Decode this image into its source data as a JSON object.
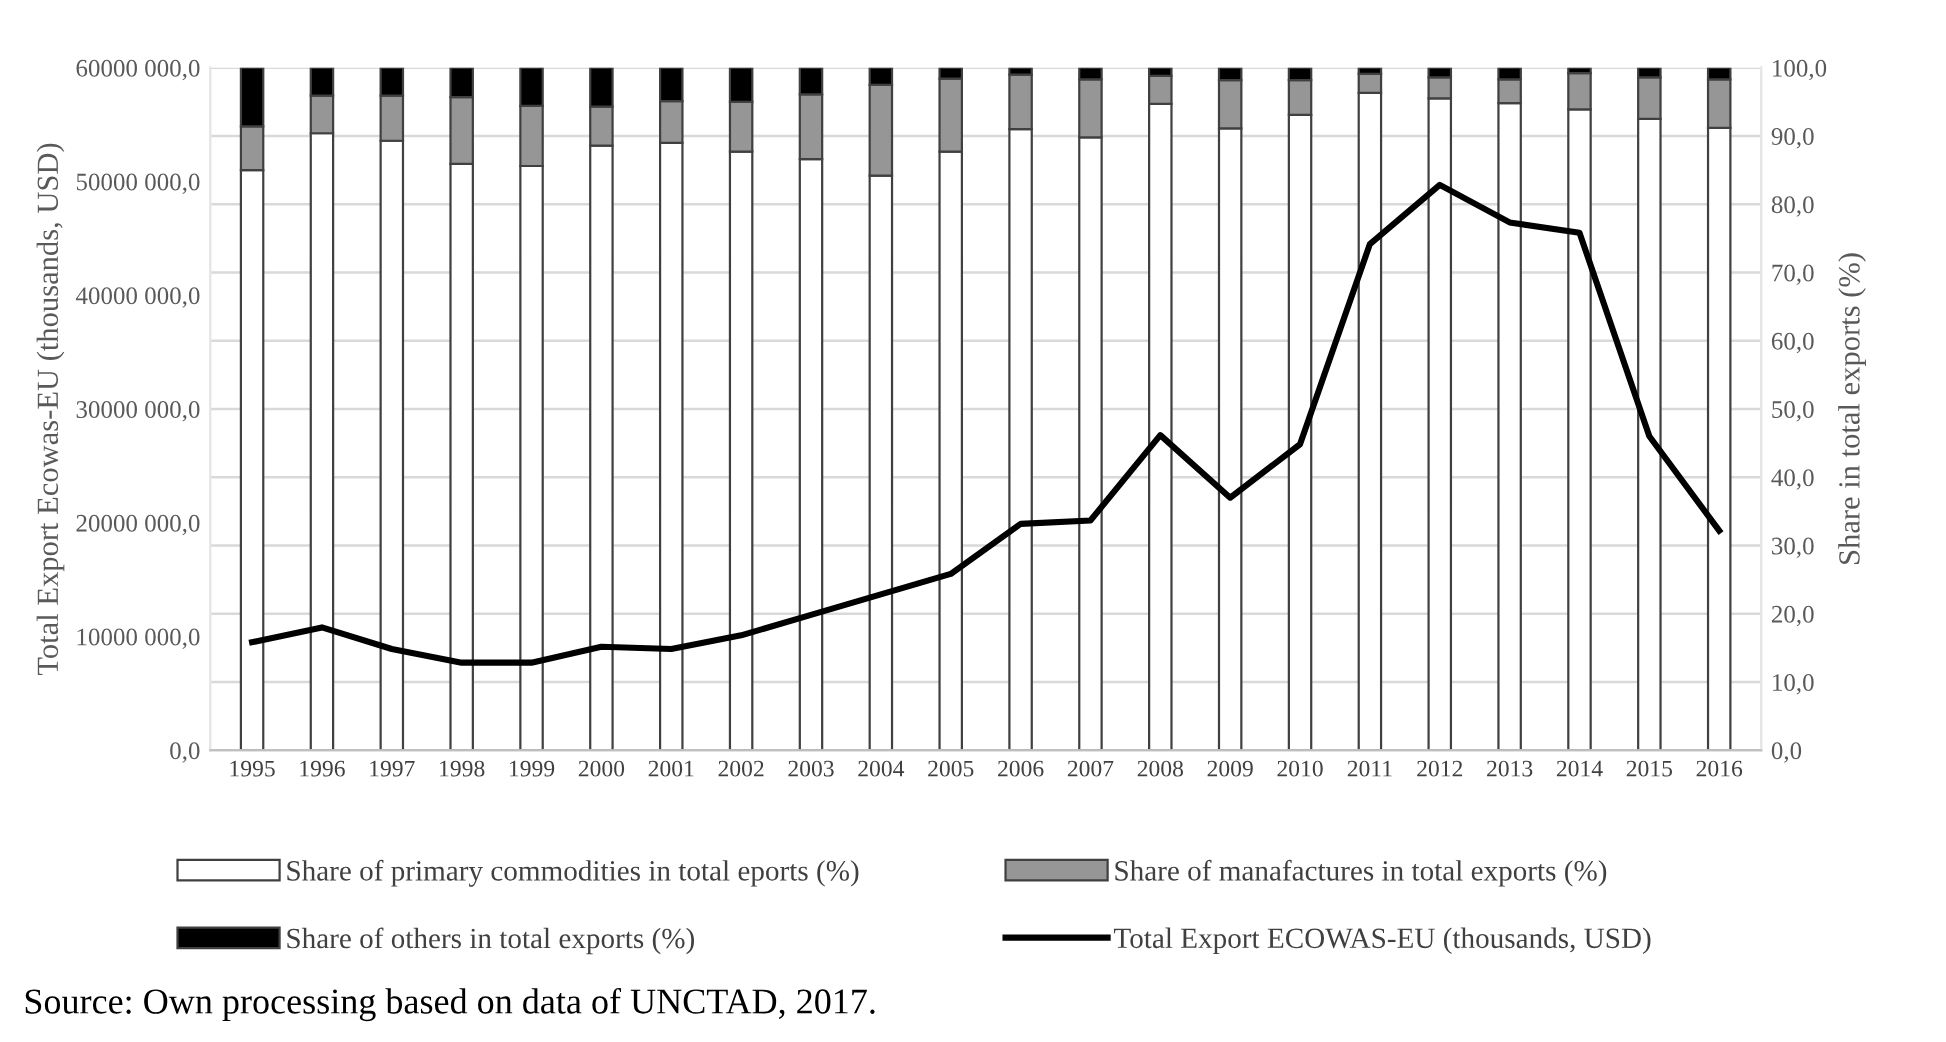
{
  "chart_data": {
    "type": "bar",
    "stacked": true,
    "categories": [
      "1995",
      "1996",
      "1997",
      "1998",
      "1999",
      "2000",
      "2001",
      "2002",
      "2003",
      "2004",
      "2005",
      "2006",
      "2007",
      "2008",
      "2009",
      "2010",
      "2011",
      "2012",
      "2013",
      "2014",
      "2015",
      "2016"
    ],
    "series": [
      {
        "name": "Share of primary commodities in total eports (%)",
        "axis": "y2",
        "color": "#ffffff",
        "values": [
          85.0,
          90.4,
          89.3,
          85.9,
          85.6,
          88.6,
          89.0,
          87.7,
          86.6,
          84.2,
          87.7,
          91.0,
          89.8,
          94.7,
          91.1,
          93.1,
          96.3,
          95.5,
          94.8,
          93.9,
          92.5,
          91.2
        ]
      },
      {
        "name": "Share of manafactures in total exports (%)",
        "axis": "y2",
        "color": "#969696",
        "values": [
          6.4,
          5.5,
          6.6,
          9.8,
          8.8,
          5.7,
          6.1,
          7.3,
          9.5,
          13.3,
          10.7,
          8.0,
          8.5,
          4.1,
          7.1,
          5.1,
          2.8,
          3.1,
          3.5,
          5.3,
          6.1,
          7.1
        ]
      },
      {
        "name": "Share of others in total exports (%)",
        "axis": "y2",
        "color": "#000000",
        "values": [
          8.6,
          4.1,
          4.1,
          4.3,
          5.6,
          5.7,
          4.9,
          5.0,
          3.9,
          2.5,
          1.6,
          1.0,
          1.7,
          1.2,
          1.8,
          1.8,
          0.9,
          1.4,
          1.7,
          0.8,
          1.4,
          1.7
        ]
      },
      {
        "name": "Total Export ECOWAS-EU (thousands, USD)",
        "type": "line",
        "color": "#000000",
        "values": [
          9500000,
          10800000,
          8900000,
          7700000,
          7700000,
          9100000,
          8900000,
          10100000,
          11900000,
          13700000,
          15500000,
          19900000,
          20200000,
          27700000,
          22200000,
          26900000,
          44500000,
          49700000,
          46400000,
          45500000,
          27600000,
          19300000
        ]
      }
    ],
    "ylabel": "Total Export Ecowas-EU (thousands, USD)",
    "y2label": "Share in total exports (%)",
    "ylim": [
      0,
      60000000
    ],
    "yticks": [
      {
        "value": 0,
        "label": "0,0"
      },
      {
        "value": 10000000,
        "label": "10000 000,0"
      },
      {
        "value": 20000000,
        "label": "20000 000,0"
      },
      {
        "value": 30000000,
        "label": "30000 000,0"
      },
      {
        "value": 40000000,
        "label": "40000 000,0"
      },
      {
        "value": 50000000,
        "label": "50000 000,0"
      },
      {
        "value": 60000000,
        "label": "60000 000,0"
      }
    ],
    "y2lim": [
      0,
      100
    ],
    "y2ticks": [
      {
        "value": 0,
        "label": "0,0"
      },
      {
        "value": 10,
        "label": "10,0"
      },
      {
        "value": 20,
        "label": "20,0"
      },
      {
        "value": 30,
        "label": "30,0"
      },
      {
        "value": 40,
        "label": "40,0"
      },
      {
        "value": 50,
        "label": "50,0"
      },
      {
        "value": 60,
        "label": "60,0"
      },
      {
        "value": 70,
        "label": "70,0"
      },
      {
        "value": 80,
        "label": "80,0"
      },
      {
        "value": 90,
        "label": "90,0"
      },
      {
        "value": 100,
        "label": "100,0"
      }
    ],
    "grid": "y",
    "legend": "bottom",
    "marker": "none",
    "line_style": "solid",
    "annotations": [
      "Source: Own processing based on data of UNCTAD, 2017."
    ]
  }
}
